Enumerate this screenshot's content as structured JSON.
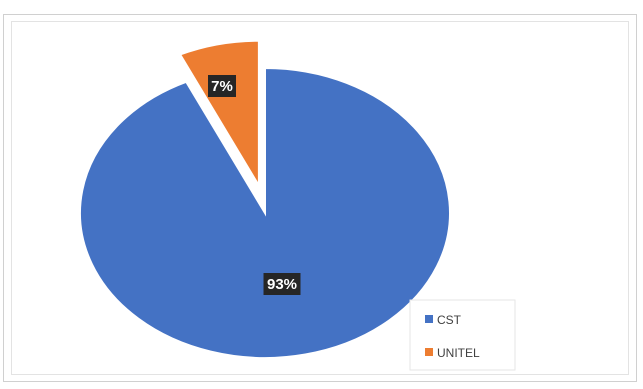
{
  "chart_data": {
    "type": "pie",
    "categories": [
      "CST",
      "UNITEL"
    ],
    "values": [
      93,
      7
    ],
    "data_labels": [
      "93%",
      "7%"
    ],
    "exploded": [
      "UNITEL"
    ],
    "colors": {
      "CST": "#4472C4",
      "UNITEL": "#ED7D31"
    },
    "label_box_color": "#262626",
    "legend_position": "bottom-right",
    "legend": [
      "CST",
      "UNITEL"
    ]
  }
}
